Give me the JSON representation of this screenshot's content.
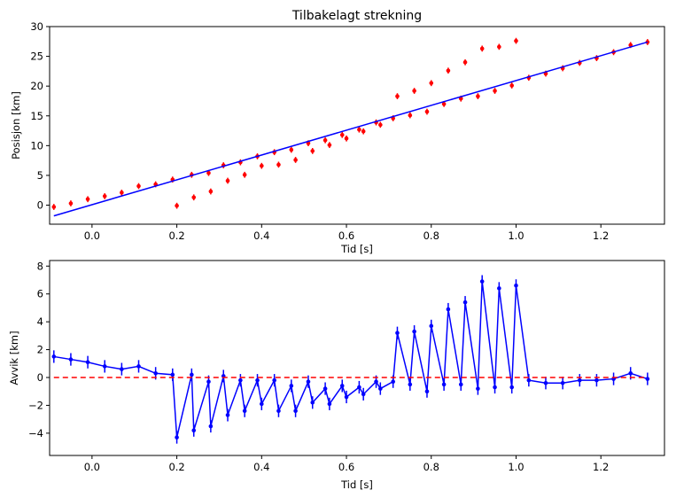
{
  "chart_data": [
    {
      "type": "scatter",
      "title": "Tilbakelagt strekning",
      "xlabel": "Tid [s]",
      "ylabel": "Posisjon [km]",
      "xlim": [
        -0.1,
        1.35
      ],
      "ylim": [
        -3.2,
        30
      ],
      "xticks": [
        0.0,
        0.2,
        0.4,
        0.6,
        0.8,
        1.0,
        1.2
      ],
      "xtick_labels": [
        "0.0",
        "0.2",
        "0.4",
        "0.6",
        "0.8",
        "1.0",
        "1.2"
      ],
      "yticks": [
        0,
        5,
        10,
        15,
        20,
        25,
        30
      ],
      "ytick_labels": [
        "0",
        "5",
        "10",
        "15",
        "20",
        "25",
        "30"
      ],
      "grid": false,
      "series": [
        {
          "kind": "errorbar-points",
          "color": "#ff0000",
          "x": [
            -0.09,
            -0.05,
            -0.01,
            0.03,
            0.07,
            0.11,
            0.15,
            0.19,
            0.2,
            0.235,
            0.24,
            0.275,
            0.28,
            0.31,
            0.32,
            0.35,
            0.36,
            0.39,
            0.4,
            0.43,
            0.44,
            0.47,
            0.48,
            0.51,
            0.52,
            0.55,
            0.56,
            0.59,
            0.6,
            0.63,
            0.64,
            0.67,
            0.68,
            0.71,
            0.72,
            0.75,
            0.76,
            0.79,
            0.8,
            0.83,
            0.84,
            0.87,
            0.88,
            0.91,
            0.92,
            0.95,
            0.96,
            0.99,
            1.0,
            1.03,
            1.07,
            1.11,
            1.15,
            1.19,
            1.23,
            1.27,
            1.31
          ],
          "y": [
            -0.3,
            0.3,
            1.0,
            1.5,
            2.1,
            3.2,
            3.5,
            4.3,
            -0.1,
            5.1,
            1.3,
            5.4,
            2.3,
            6.7,
            4.1,
            7.2,
            5.1,
            8.2,
            6.6,
            8.9,
            6.8,
            9.3,
            7.6,
            10.4,
            9.1,
            10.9,
            10.1,
            11.8,
            11.2,
            12.7,
            12.4,
            13.9,
            13.5,
            14.6,
            18.3,
            15.1,
            19.2,
            15.7,
            20.5,
            17.0,
            22.6,
            17.9,
            24.0,
            18.3,
            26.3,
            19.2,
            26.6,
            20.1,
            27.6,
            21.4,
            22.1,
            23.0,
            23.9,
            24.7,
            25.7,
            26.9,
            27.4
          ],
          "yerr": 0.5
        },
        {
          "kind": "line",
          "color": "#0000ff",
          "x": [
            -0.09,
            1.31
          ],
          "y": [
            -1.8,
            27.4
          ]
        }
      ]
    },
    {
      "type": "line",
      "title": "",
      "xlabel": "Tid [s]",
      "ylabel": "Avvik [km]",
      "xlim": [
        -0.1,
        1.35
      ],
      "ylim": [
        -5.6,
        8.4
      ],
      "xticks": [
        0.0,
        0.2,
        0.4,
        0.6,
        0.8,
        1.0,
        1.2
      ],
      "xtick_labels": [
        "0.0",
        "0.2",
        "0.4",
        "0.6",
        "0.8",
        "1.0",
        "1.2"
      ],
      "yticks": [
        -4,
        -2,
        0,
        2,
        4,
        6,
        8
      ],
      "ytick_labels": [
        "−4",
        "−2",
        "0",
        "2",
        "4",
        "6",
        "8"
      ],
      "grid": false,
      "series": [
        {
          "kind": "errorbar-line",
          "color": "#0000ff",
          "x": [
            -0.09,
            -0.05,
            -0.01,
            0.03,
            0.07,
            0.11,
            0.15,
            0.19,
            0.2,
            0.235,
            0.24,
            0.275,
            0.28,
            0.31,
            0.32,
            0.35,
            0.36,
            0.39,
            0.4,
            0.43,
            0.44,
            0.47,
            0.48,
            0.51,
            0.52,
            0.55,
            0.56,
            0.59,
            0.6,
            0.63,
            0.64,
            0.67,
            0.68,
            0.71,
            0.72,
            0.75,
            0.76,
            0.79,
            0.8,
            0.83,
            0.84,
            0.87,
            0.88,
            0.91,
            0.92,
            0.95,
            0.96,
            0.99,
            1.0,
            1.03,
            1.07,
            1.11,
            1.15,
            1.19,
            1.23,
            1.27,
            1.31
          ],
          "y": [
            1.5,
            1.3,
            1.1,
            0.8,
            0.6,
            0.8,
            0.3,
            0.2,
            -4.3,
            0.2,
            -3.8,
            -0.3,
            -3.5,
            0.1,
            -2.7,
            -0.2,
            -2.4,
            -0.2,
            -1.9,
            -0.2,
            -2.4,
            -0.6,
            -2.4,
            -0.3,
            -1.8,
            -0.8,
            -1.9,
            -0.6,
            -1.4,
            -0.7,
            -1.2,
            -0.3,
            -0.8,
            -0.3,
            3.2,
            -0.5,
            3.3,
            -1.0,
            3.7,
            -0.5,
            4.9,
            -0.5,
            5.4,
            -0.8,
            6.9,
            -0.7,
            6.4,
            -0.7,
            6.6,
            -0.2,
            -0.4,
            -0.4,
            -0.2,
            -0.2,
            -0.1,
            0.3,
            -0.1
          ],
          "yerr": 0.45
        },
        {
          "kind": "dashed-line",
          "color": "#ff0000",
          "x": [
            -0.09,
            1.31
          ],
          "y": [
            0,
            0
          ]
        }
      ]
    }
  ]
}
